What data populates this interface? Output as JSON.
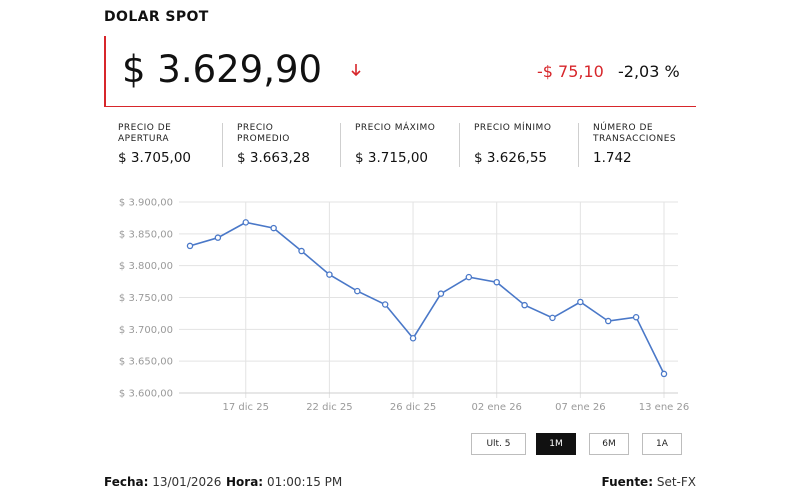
{
  "title": "DOLAR SPOT",
  "price": "$ 3.629,90",
  "change": "-$ 75,10",
  "change_pct": "-2,03 %",
  "colors": {
    "accent_red": "#d7262b",
    "line_blue": "#4a78c8"
  },
  "icons": {
    "trend": "down-arrow-icon"
  },
  "stats": [
    {
      "label": "PRECIO DE\nAPERTURA",
      "value": "$ 3.705,00"
    },
    {
      "label": "PRECIO\nPROMEDIO",
      "value": "$ 3.663,28"
    },
    {
      "label": "PRECIO MÁXIMO",
      "value": "$ 3.715,00"
    },
    {
      "label": "PRECIO MÍNIMO",
      "value": "$ 3.626,55"
    },
    {
      "label": "NÚMERO DE\nTRANSACCIONES",
      "value": "1.742"
    }
  ],
  "range_buttons": [
    "Ult. 5",
    "1M",
    "6M",
    "1A"
  ],
  "active_range": "1M",
  "footer": {
    "fecha_label": "Fecha:",
    "fecha_value": "13/01/2026",
    "hora_label": "Hora:",
    "hora_value": "01:00:15 PM",
    "fuente_label": "Fuente:",
    "fuente_value": "Set-FX"
  },
  "chart_data": {
    "type": "line",
    "y_tick_labels": [
      "$ 3.600,00",
      "$ 3.650,00",
      "$ 3.700,00",
      "$ 3.750,00",
      "$ 3.800,00",
      "$ 3.850,00",
      "$ 3.900,00"
    ],
    "x_tick_labels": [
      "17 dic 25",
      "22 dic 25",
      "26 dic 25",
      "02 ene 26",
      "07 ene 26",
      "13 ene 26"
    ],
    "x_tick_indices": [
      2,
      5,
      8,
      11,
      14,
      17
    ],
    "ylim": [
      3600,
      3900
    ],
    "grid": true,
    "series": [
      {
        "values": [
          3831,
          3844,
          3868,
          3859,
          3823,
          3786,
          3760,
          3739,
          3686,
          3756,
          3782,
          3774,
          3738,
          3718,
          3743,
          3713,
          3719,
          3630
        ]
      }
    ]
  }
}
